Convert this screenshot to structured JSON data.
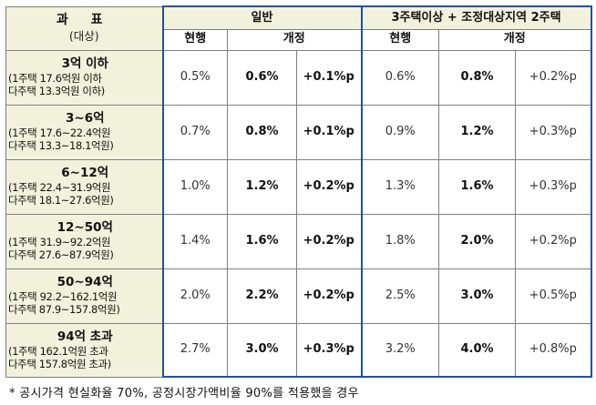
{
  "header": {
    "title": "과 표",
    "subtitle": "(대상)",
    "group_general": "일반",
    "group_multi": "3주택이상 + 조정대상지역 2주택",
    "col_current": "현행",
    "col_revised": "개정"
  },
  "rows": [
    {
      "bracket": "3억 이하",
      "one_home": "(1주택 17.6억원 이하",
      "multi_home": "다주택 13.3억원 이하)",
      "gen_current": "0.5%",
      "gen_new": "0.6%",
      "gen_change": "+0.1%p",
      "multi_current": "0.6%",
      "multi_new": "0.8%",
      "multi_change": "+0.2%p"
    },
    {
      "bracket": "3~6억",
      "one_home": "(1주택 17.6~22.4억원",
      "multi_home": "다주택 13.3~18.1억원)",
      "gen_current": "0.7%",
      "gen_new": "0.8%",
      "gen_change": "+0.1%p",
      "multi_current": "0.9%",
      "multi_new": "1.2%",
      "multi_change": "+0.3%p"
    },
    {
      "bracket": "6~12억",
      "one_home": "(1주택 22.4~31.9억원",
      "multi_home": "다주택 18.1~27.6억원)",
      "gen_current": "1.0%",
      "gen_new": "1.2%",
      "gen_change": "+0.2%p",
      "multi_current": "1.3%",
      "multi_new": "1.6%",
      "multi_change": "+0.3%p"
    },
    {
      "bracket": "12~50억",
      "one_home": "(1주택 31.9~92.2억원",
      "multi_home": "다주택 27.6~87.9억원)",
      "gen_current": "1.4%",
      "gen_new": "1.6%",
      "gen_change": "+0.2%p",
      "multi_current": "1.8%",
      "multi_new": "2.0%",
      "multi_change": "+0.2%p"
    },
    {
      "bracket": "50~94억",
      "one_home": "(1주택 92.2~162.1억원",
      "multi_home": "다주택 87.9~157.8억원)",
      "gen_current": "2.0%",
      "gen_new": "2.2%",
      "gen_change": "+0.2%p",
      "multi_current": "2.5%",
      "multi_new": "3.0%",
      "multi_change": "+0.5%p"
    },
    {
      "bracket": "94억 초과",
      "one_home": "(1주택 162.1억원 초과",
      "multi_home": "다주택 157.8억원 초과)",
      "gen_current": "2.7%",
      "gen_new": "3.0%",
      "gen_change": "+0.3%p",
      "multi_current": "3.2%",
      "multi_new": "4.0%",
      "multi_change": "+0.8%p"
    }
  ],
  "footnote": "* 공시가격 현실화율 70%, 공정시장가액비율 90%를 적용했을 경우",
  "colors": {
    "header_bg": "#f2f2dc",
    "group_border": "#1f4fa8",
    "grid": "#7f7f7f"
  }
}
